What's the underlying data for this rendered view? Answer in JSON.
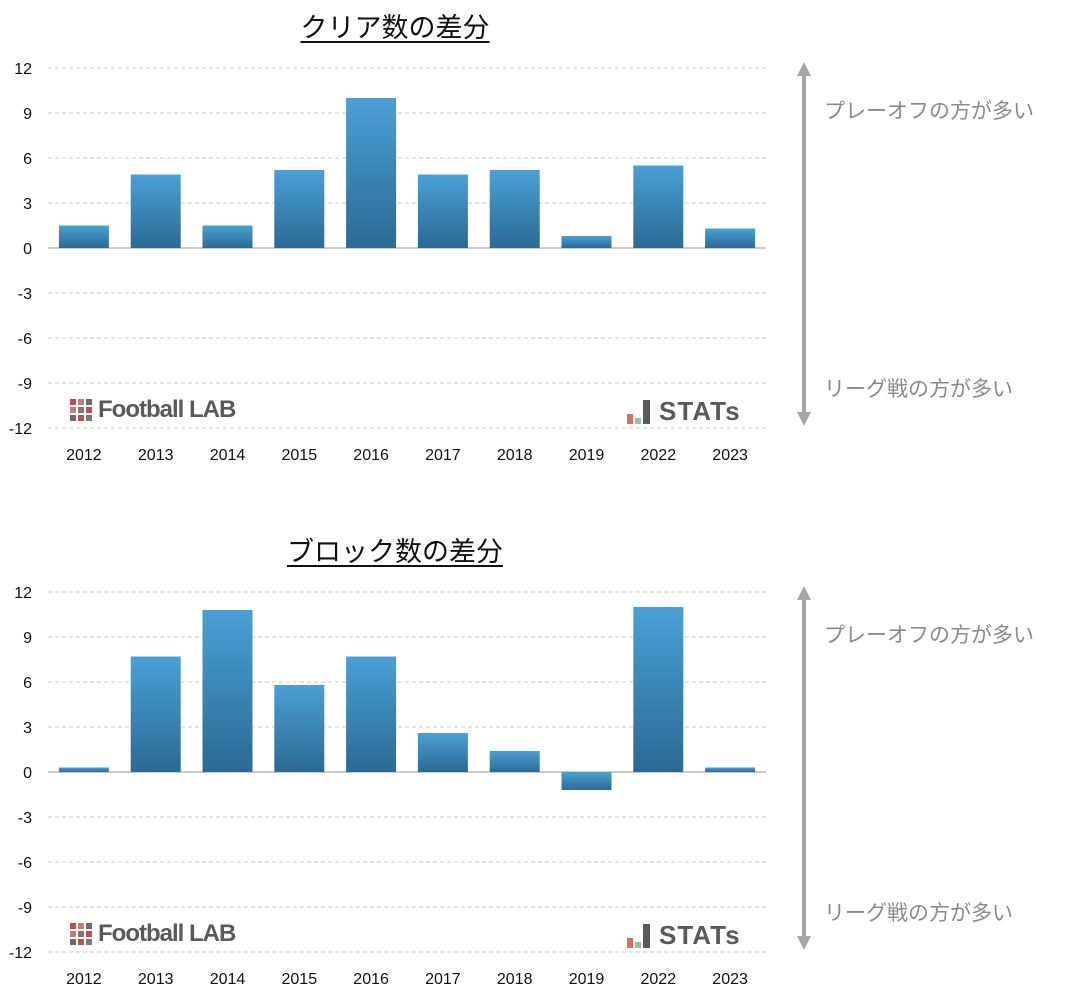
{
  "colors": {
    "bar_top": "#4aa0d6",
    "bar_bottom": "#2b6a94",
    "grid": "#c8c8c8",
    "zero_line": "#b8b8b8",
    "arrow": "#a6a6a6",
    "note_text": "#8a8a8a"
  },
  "annotations": {
    "top_note": "プレーオフの方が多い",
    "bottom_note": "リーグ戦の方が多い"
  },
  "logos": {
    "football_lab": "Football LAB",
    "stats": "STATs"
  },
  "chart_data": [
    {
      "type": "bar",
      "title": "クリア数の差分",
      "categories": [
        "2012",
        "2013",
        "2014",
        "2015",
        "2016",
        "2017",
        "2018",
        "2019",
        "2022",
        "2023"
      ],
      "values": [
        1.5,
        4.9,
        1.5,
        5.2,
        10.0,
        4.9,
        5.2,
        0.8,
        5.5,
        1.3
      ],
      "ylim": [
        -12,
        12
      ],
      "yticks": [
        12,
        9,
        6,
        3,
        0,
        -3,
        -6,
        -9,
        -12
      ],
      "grid": true
    },
    {
      "type": "bar",
      "title": "ブロック数の差分",
      "categories": [
        "2012",
        "2013",
        "2014",
        "2015",
        "2016",
        "2017",
        "2018",
        "2019",
        "2022",
        "2023"
      ],
      "values": [
        0.3,
        7.7,
        10.8,
        5.8,
        7.7,
        2.6,
        1.4,
        -1.2,
        11.0,
        0.3
      ],
      "ylim": [
        -12,
        12
      ],
      "yticks": [
        12,
        9,
        6,
        3,
        0,
        -3,
        -6,
        -9,
        -12
      ],
      "grid": true
    }
  ]
}
